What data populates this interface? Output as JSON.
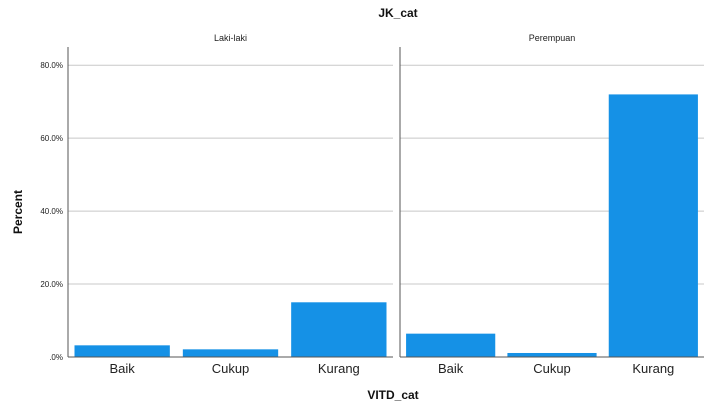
{
  "chart_data": {
    "type": "bar",
    "title": "JK_cat",
    "xlabel": "VITD_cat",
    "ylabel": "Percent",
    "ylim": [
      0,
      85
    ],
    "yticks": [
      {
        "value": 0,
        "label": ".0%"
      },
      {
        "value": 20,
        "label": "20.0%"
      },
      {
        "value": 40,
        "label": "40.0%"
      },
      {
        "value": 60,
        "label": "60.0%"
      },
      {
        "value": 80,
        "label": "80.0%"
      }
    ],
    "grid": true,
    "bar_color": "#1591e6",
    "categories": [
      "Baik",
      "Cukup",
      "Kurang"
    ],
    "panels": [
      {
        "label": "Laki-laki",
        "values": [
          3.2,
          2.1,
          15.0
        ]
      },
      {
        "label": "Perempuan",
        "values": [
          6.4,
          1.1,
          72.0
        ]
      }
    ]
  }
}
